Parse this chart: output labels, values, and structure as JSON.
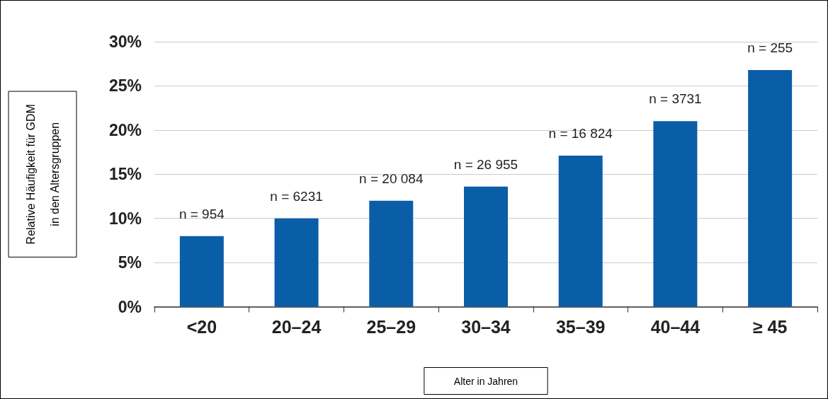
{
  "chart_data": {
    "type": "bar",
    "ylabel": "Relative Häufigkeit für GDM\nin den Altersgruppen",
    "xlabel": "Alter in Jahren",
    "categories": [
      "<20",
      "20–24",
      "25–29",
      "30–34",
      "35–39",
      "40–44",
      "≥ 45"
    ],
    "values": [
      8,
      10,
      12,
      13.6,
      17.1,
      21,
      26.8
    ],
    "annotations": [
      {
        "text": "n = 954",
        "x": "<20",
        "y": 8
      },
      {
        "text": "n = 6231",
        "x": "20–24",
        "y": 10
      },
      {
        "text": "n = 20 084",
        "x": "25–29",
        "y": 12
      },
      {
        "text": "n = 26 955",
        "x": "30–34",
        "y": 13.6
      },
      {
        "text": "n = 16 824",
        "x": "35–39",
        "y": 17.1
      },
      {
        "text": "n = 3731",
        "x": "40–44",
        "y": 21
      },
      {
        "text": "n = 255",
        "x": "≥ 45",
        "y": 26.8
      }
    ],
    "color": "#0a5ea8",
    "ylim": [
      0,
      30
    ],
    "yticks": [
      {
        "value": 0,
        "label": "0%"
      },
      {
        "value": 5,
        "label": "5%"
      },
      {
        "value": 10,
        "label": "10%"
      },
      {
        "value": 15,
        "label": "15%"
      },
      {
        "value": 20,
        "label": "20%"
      },
      {
        "value": 25,
        "label": "25%"
      },
      {
        "value": 30,
        "label": "30%"
      }
    ],
    "grid": "y"
  }
}
